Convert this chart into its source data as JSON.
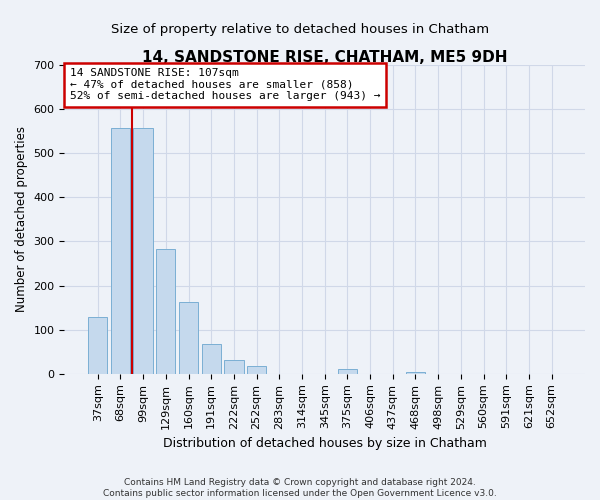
{
  "title": "14, SANDSTONE RISE, CHATHAM, ME5 9DH",
  "subtitle": "Size of property relative to detached houses in Chatham",
  "xlabel": "Distribution of detached houses by size in Chatham",
  "ylabel": "Number of detached properties",
  "bar_labels": [
    "37sqm",
    "68sqm",
    "99sqm",
    "129sqm",
    "160sqm",
    "191sqm",
    "222sqm",
    "252sqm",
    "283sqm",
    "314sqm",
    "345sqm",
    "375sqm",
    "406sqm",
    "437sqm",
    "468sqm",
    "498sqm",
    "529sqm",
    "560sqm",
    "591sqm",
    "621sqm",
    "652sqm"
  ],
  "bar_values": [
    128,
    557,
    557,
    284,
    163,
    68,
    32,
    18,
    0,
    0,
    0,
    10,
    0,
    0,
    4,
    0,
    0,
    0,
    0,
    0,
    0
  ],
  "bar_color": "#c5d9ed",
  "bar_edge_color": "#7bafd4",
  "vline_x": 1.5,
  "annotation_text": "14 SANDSTONE RISE: 107sqm\n← 47% of detached houses are smaller (858)\n52% of semi-detached houses are larger (943) →",
  "annotation_box_color": "white",
  "annotation_box_edge_color": "#cc0000",
  "vline_color": "#cc0000",
  "ylim": [
    0,
    700
  ],
  "yticks": [
    0,
    100,
    200,
    300,
    400,
    500,
    600,
    700
  ],
  "footer_line1": "Contains HM Land Registry data © Crown copyright and database right 2024.",
  "footer_line2": "Contains public sector information licensed under the Open Government Licence v3.0.",
  "background_color": "#eef2f8",
  "grid_color": "#d0d8e8",
  "title_fontsize": 11,
  "subtitle_fontsize": 9.5,
  "ylabel_fontsize": 8.5,
  "xlabel_fontsize": 9,
  "tick_fontsize": 8,
  "annotation_fontsize": 8,
  "footer_fontsize": 6.5
}
